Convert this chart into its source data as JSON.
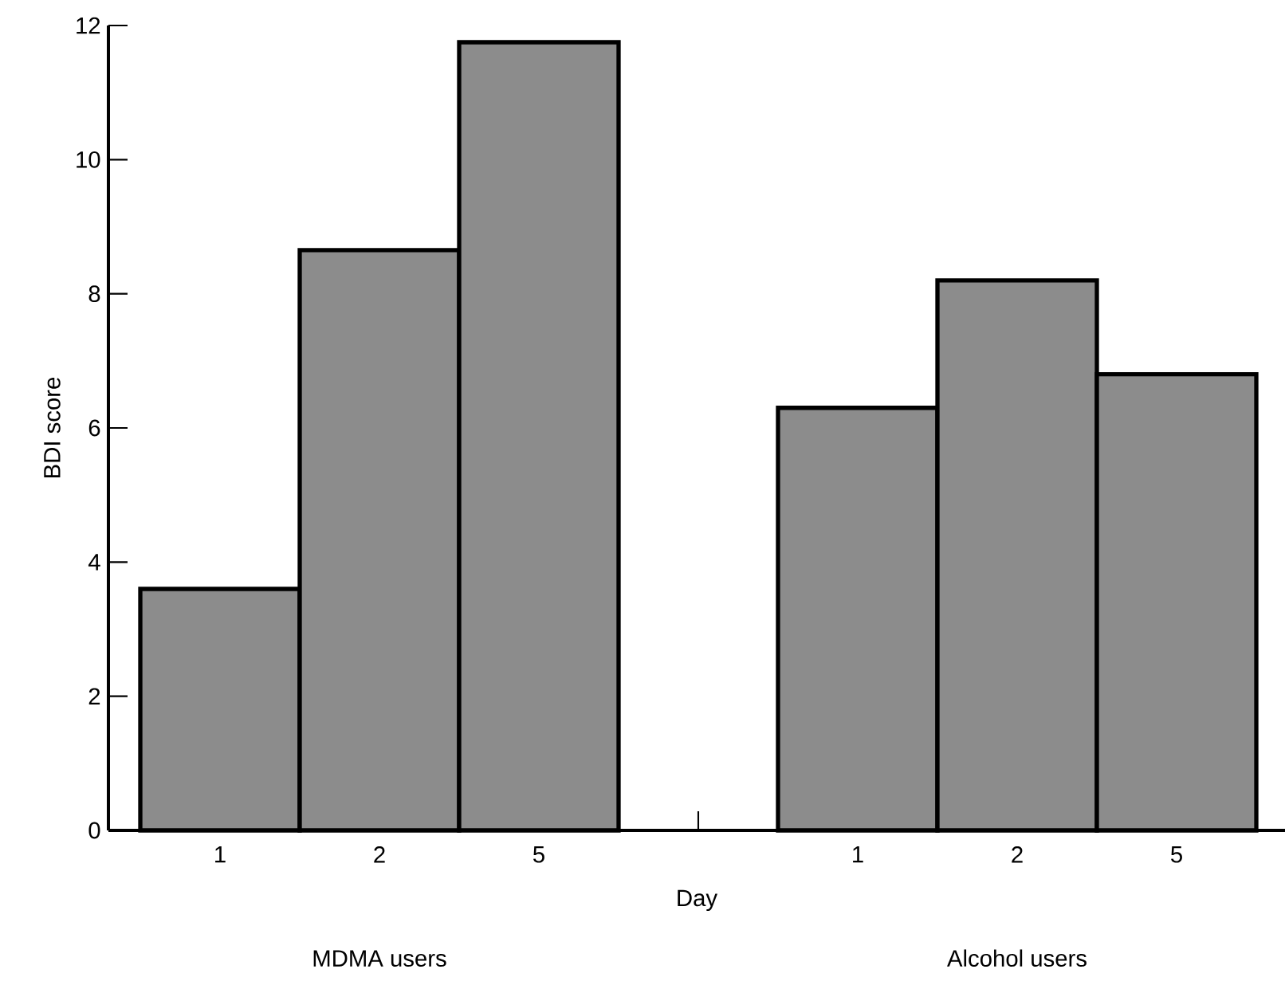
{
  "chart_data": {
    "type": "bar",
    "xlabel": "Day",
    "ylabel": "BDI score",
    "categories": [
      "1",
      "2",
      "5",
      null,
      "1",
      "2",
      "5"
    ],
    "values": [
      3.6,
      8.65,
      11.75,
      null,
      6.3,
      8.2,
      6.8
    ],
    "color": "#8c8c8c",
    "ylim": [
      0,
      12
    ],
    "yticks": [
      0,
      2,
      4,
      6,
      8,
      10,
      12
    ],
    "annotations": [
      "MDMA users",
      "Alcohol users"
    ]
  }
}
